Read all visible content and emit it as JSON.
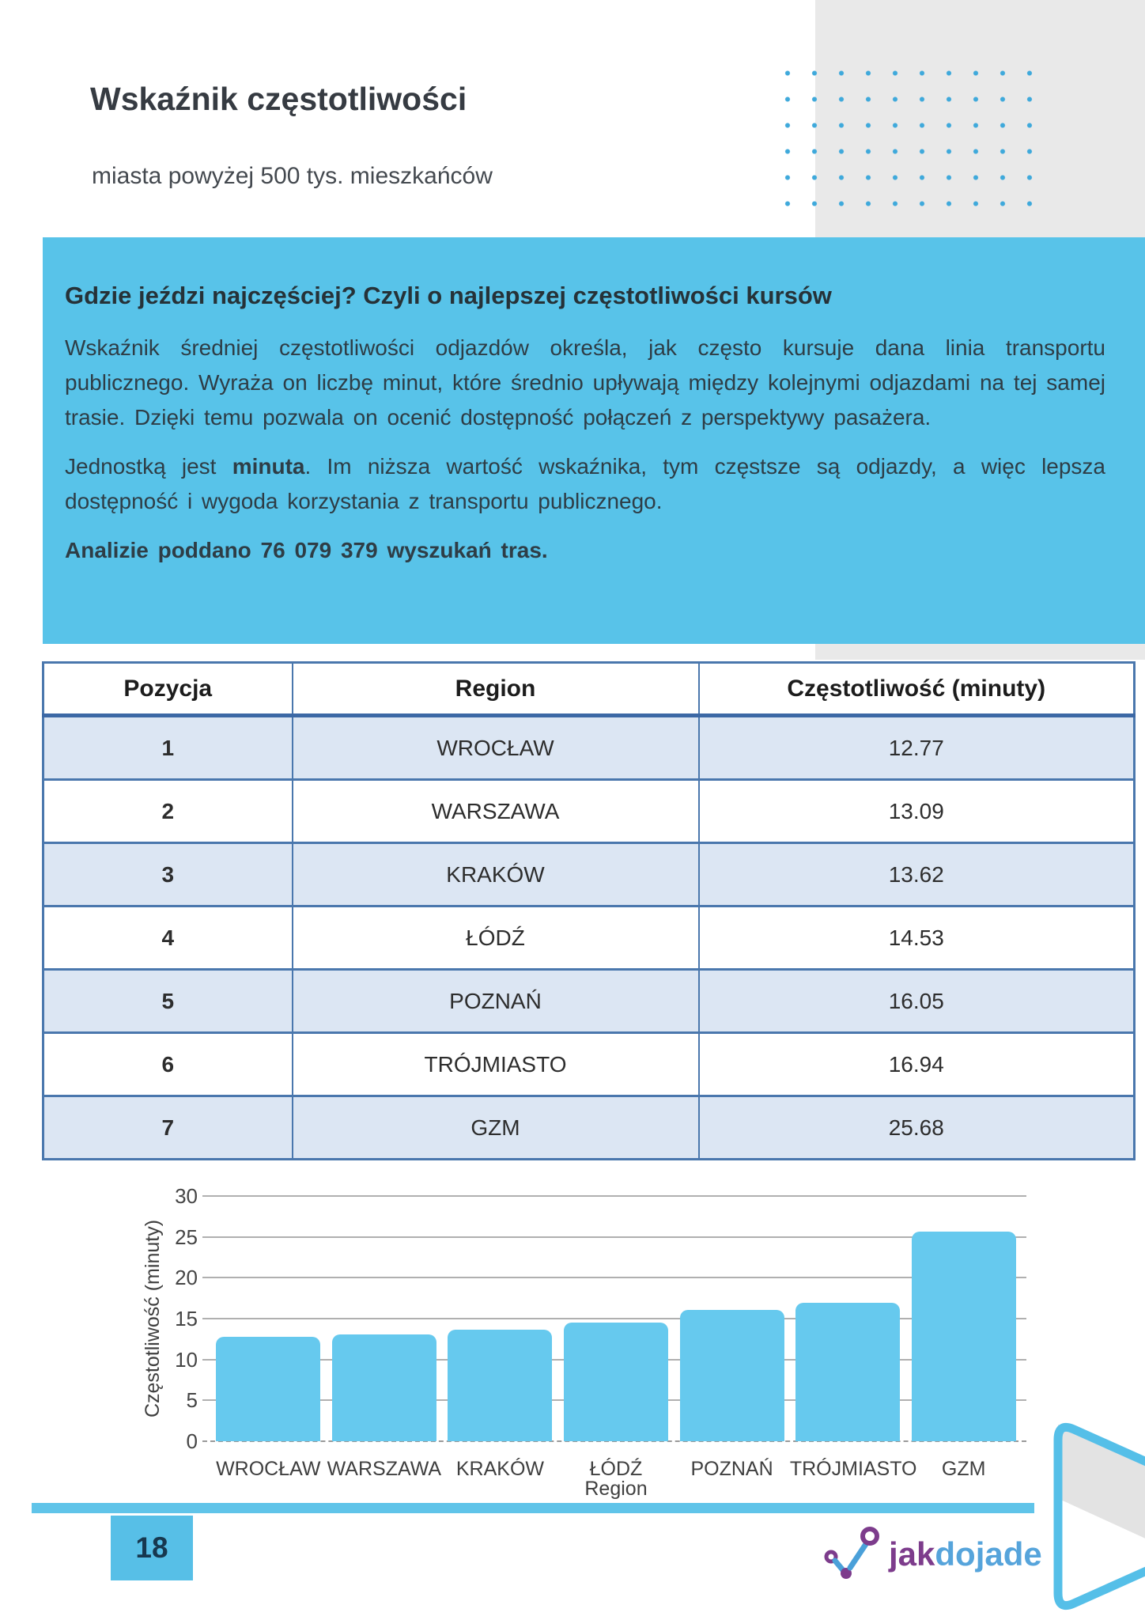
{
  "header": {
    "title": "Wskaźnik częstotliwości",
    "subtitle": "miasta powyżej 500 tys. mieszkańców",
    "page_number": "18"
  },
  "intro_box": {
    "heading": "Gdzie jeździ najczęściej? Czyli o najlepszej częstotliwości kursów",
    "paragraph1": "Wskaźnik średniej częstotliwości odjazdów określa, jak często kursuje dana linia transportu publicznego. Wyraża on liczbę minut, które średnio upływają między kolejnymi odjazdami na tej samej trasie. Dzięki temu pozwala on ocenić dostępność połączeń z perspektywy pasażera.",
    "paragraph2_prefix": "Jednostką jest ",
    "paragraph2_bold": "minuta",
    "paragraph2_suffix": ". Im niższa wartość wskaźnika, tym częstsze są odjazdy, a więc lepsza dostępność i wygoda korzystania z transportu publicznego.",
    "stat_line": "Analizie poddano 76 079 379 wyszukań tras."
  },
  "table": {
    "headers": [
      "Pozycja",
      "Region",
      "Częstotliwość (minuty)"
    ],
    "rows": [
      {
        "position": "1",
        "region": "WROCŁAW",
        "frequency": "12.77"
      },
      {
        "position": "2",
        "region": "WARSZAWA",
        "frequency": "13.09"
      },
      {
        "position": "3",
        "region": "KRAKÓW",
        "frequency": "13.62"
      },
      {
        "position": "4",
        "region": "ŁÓDŹ",
        "frequency": "14.53"
      },
      {
        "position": "5",
        "region": "POZNAŃ",
        "frequency": "16.05"
      },
      {
        "position": "6",
        "region": "TRÓJMIASTO",
        "frequency": "16.94"
      },
      {
        "position": "7",
        "region": "GZM",
        "frequency": "25.68"
      }
    ]
  },
  "chart_data": {
    "type": "bar",
    "title": "",
    "categories": [
      "WROCŁAW",
      "WARSZAWA",
      "KRAKÓW",
      "ŁÓDŹ",
      "POZNAŃ",
      "TRÓJMIASTO",
      "GZM"
    ],
    "values": [
      12.77,
      13.09,
      13.62,
      14.53,
      16.05,
      16.94,
      25.68
    ],
    "xlabel": "Region",
    "ylabel": "Częstotliwość (minuty)",
    "ylim": [
      0,
      30
    ],
    "ytick_step": 5,
    "grid": true,
    "legend": "none",
    "bar_color": "#66c9ee"
  },
  "footer": {
    "logo_jak": "jak",
    "logo_dojade": "dojade"
  },
  "colors": {
    "accent_blue_box": "#58c3e9",
    "bar_blue": "#66c9ee",
    "dot_blue": "#3fa9db",
    "decor_gray": "#e9e9e9",
    "table_border": "#4a77ad",
    "table_alt_row": "#dce6f3",
    "strip_blue": "#60c4e9",
    "page_number_bg": "#57bfe7",
    "logo_purple": "#7d3c8c",
    "logo_blue": "#56a4db"
  }
}
